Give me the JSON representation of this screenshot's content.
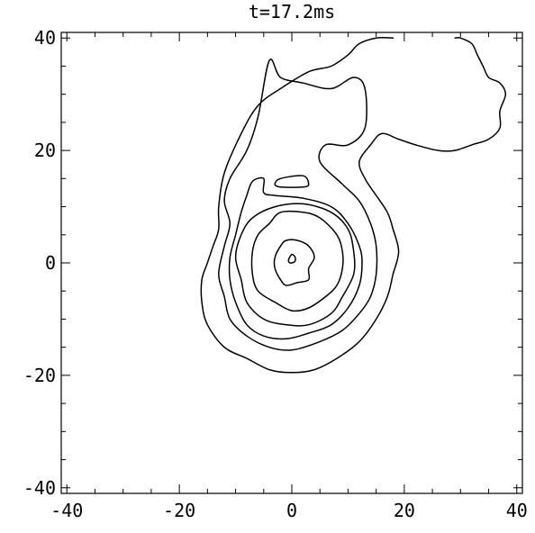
{
  "chart_data": {
    "type": "contour",
    "title": "t=17.2ms",
    "xlabel": "",
    "ylabel": "",
    "xlim": [
      -41,
      41
    ],
    "ylim": [
      -41,
      41
    ],
    "xticks": [
      -40,
      -20,
      0,
      20,
      40
    ],
    "yticks": [
      -40,
      -20,
      0,
      20,
      40
    ],
    "x_tick_labels": [
      "-40",
      "-20",
      "0",
      "20",
      "40"
    ],
    "y_tick_labels": [
      "-40",
      "-20",
      "0",
      "20",
      "40"
    ],
    "minor_tick_step": 5,
    "grid": false,
    "legend": "none",
    "line_color": "#000000",
    "contours": [
      {
        "closed": false,
        "points": [
          [
            18,
            40
          ],
          [
            15,
            40
          ],
          [
            12,
            39
          ],
          [
            10,
            37
          ],
          [
            7,
            35
          ],
          [
            3,
            34
          ],
          [
            -2,
            31
          ],
          [
            -6,
            28
          ],
          [
            -9,
            23
          ],
          [
            -12,
            16
          ],
          [
            -13,
            10
          ],
          [
            -13,
            6
          ],
          [
            -14,
            3
          ],
          [
            -15,
            0
          ],
          [
            -16,
            -3
          ],
          [
            -16,
            -7
          ],
          [
            -15,
            -11
          ],
          [
            -12,
            -15
          ],
          [
            -8,
            -17
          ],
          [
            -4,
            -19
          ],
          [
            0,
            -19.5
          ],
          [
            4,
            -19
          ],
          [
            8,
            -17
          ],
          [
            12,
            -14
          ],
          [
            15,
            -10
          ],
          [
            17,
            -6
          ],
          [
            18,
            -2
          ],
          [
            19,
            2
          ],
          [
            18,
            6
          ],
          [
            17,
            9
          ],
          [
            15,
            12
          ],
          [
            13,
            15
          ],
          [
            12,
            18
          ],
          [
            14,
            21
          ],
          [
            16,
            23
          ],
          [
            19,
            22
          ],
          [
            22,
            21
          ],
          [
            26,
            20
          ],
          [
            29,
            20
          ],
          [
            32,
            21
          ],
          [
            35,
            22
          ],
          [
            37,
            24
          ],
          [
            37,
            27
          ],
          [
            38,
            30
          ],
          [
            37,
            32
          ],
          [
            35,
            33
          ],
          [
            34,
            35
          ],
          [
            33,
            37
          ],
          [
            32,
            39
          ],
          [
            30,
            40
          ],
          [
            29,
            40
          ]
        ]
      },
      {
        "closed": true,
        "points": [
          [
            -4,
            36
          ],
          [
            -2,
            33
          ],
          [
            2,
            32
          ],
          [
            7,
            31
          ],
          [
            11,
            33
          ],
          [
            13,
            31
          ],
          [
            13,
            24
          ],
          [
            10,
            21
          ],
          [
            6,
            21
          ],
          [
            5,
            18
          ],
          [
            9,
            14
          ],
          [
            12,
            11
          ],
          [
            14,
            7
          ],
          [
            15,
            3
          ],
          [
            15,
            -2
          ],
          [
            14,
            -6
          ],
          [
            12,
            -9
          ],
          [
            9,
            -12
          ],
          [
            5,
            -14
          ],
          [
            0,
            -15.5
          ],
          [
            -4,
            -15
          ],
          [
            -8,
            -13
          ],
          [
            -11,
            -10
          ],
          [
            -12,
            -6
          ],
          [
            -13,
            -2
          ],
          [
            -12,
            3
          ],
          [
            -11,
            7
          ],
          [
            -12,
            11
          ],
          [
            -11,
            15
          ],
          [
            -8,
            20
          ],
          [
            -6,
            26
          ]
        ]
      },
      {
        "closed": true,
        "points": [
          [
            -2,
            15
          ],
          [
            2,
            15.5
          ],
          [
            3,
            14
          ],
          [
            2,
            13.5
          ],
          [
            -2,
            13.5
          ],
          [
            -3,
            14
          ]
        ]
      },
      {
        "closed": true,
        "points": [
          [
            -5,
            15
          ],
          [
            -5,
            12.5
          ],
          [
            -3,
            12
          ],
          [
            2,
            11.5
          ],
          [
            7,
            10
          ],
          [
            10,
            7
          ],
          [
            12,
            3
          ],
          [
            12.5,
            0
          ],
          [
            12,
            -4
          ],
          [
            10,
            -8
          ],
          [
            7,
            -11
          ],
          [
            3,
            -12.5
          ],
          [
            -1,
            -13.5
          ],
          [
            -5,
            -13
          ],
          [
            -8,
            -11
          ],
          [
            -10,
            -7
          ],
          [
            -11,
            -3
          ],
          [
            -11,
            1
          ],
          [
            -10,
            5
          ],
          [
            -9,
            9
          ],
          [
            -8,
            12
          ],
          [
            -7,
            14.5
          ]
        ]
      },
      {
        "closed": true,
        "points": [
          [
            -3,
            10
          ],
          [
            2,
            10.5
          ],
          [
            7,
            9
          ],
          [
            10,
            6
          ],
          [
            11,
            2
          ],
          [
            11,
            -2
          ],
          [
            9,
            -6
          ],
          [
            7,
            -9
          ],
          [
            3,
            -11
          ],
          [
            -1,
            -11
          ],
          [
            -5,
            -10
          ],
          [
            -8,
            -7
          ],
          [
            -9,
            -3
          ],
          [
            -10,
            1
          ],
          [
            -9,
            5
          ],
          [
            -7,
            8
          ]
        ]
      },
      {
        "closed": true,
        "points": [
          [
            -2,
            9
          ],
          [
            2,
            9
          ],
          [
            5,
            8
          ],
          [
            8,
            5
          ],
          [
            9,
            2
          ],
          [
            9,
            -1
          ],
          [
            8,
            -4
          ],
          [
            6,
            -6
          ],
          [
            3,
            -8
          ],
          [
            0,
            -8.5
          ],
          [
            -3,
            -7
          ],
          [
            -6,
            -5
          ],
          [
            -7,
            -2
          ],
          [
            -7,
            2
          ],
          [
            -6,
            5
          ],
          [
            -4,
            7
          ]
        ]
      },
      {
        "closed": true,
        "points": [
          [
            -1,
            4
          ],
          [
            1,
            4
          ],
          [
            3,
            3
          ],
          [
            4,
            1
          ],
          [
            3,
            -1
          ],
          [
            3,
            -3
          ],
          [
            1,
            -3.5
          ],
          [
            -1,
            -4
          ],
          [
            -2,
            -3
          ],
          [
            -3,
            -1
          ],
          [
            -3,
            1
          ],
          [
            -2,
            3
          ]
        ]
      },
      {
        "closed": true,
        "points": [
          [
            0,
            1.5
          ],
          [
            0.6,
            1
          ],
          [
            0.5,
            0.2
          ],
          [
            -0.3,
            0
          ],
          [
            -0.6,
            0.5
          ]
        ]
      }
    ]
  }
}
